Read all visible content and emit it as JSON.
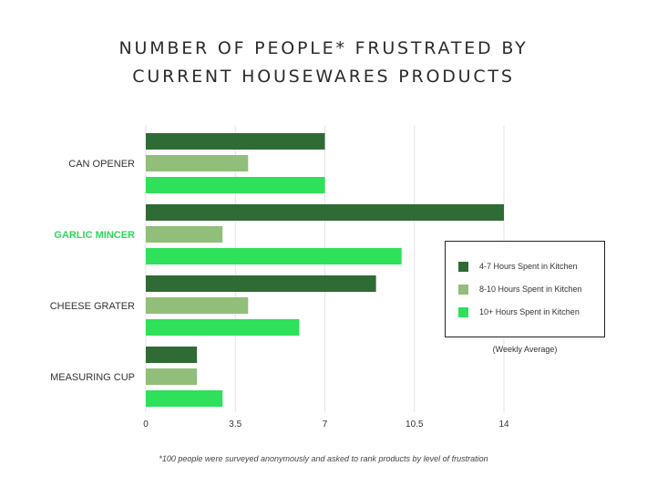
{
  "title_lines": [
    "NUMBER OF PEOPLE* FRUSTRATED BY",
    "CURRENT HOUSEWARES PRODUCTS"
  ],
  "footnote": "*100 people were surveyed anonymously and asked to rank products by level of frustration",
  "legend_note": "(Weekly Average)",
  "colors": {
    "dark": "#2f6b34",
    "light": "#91be78",
    "bright": "#2ee05a",
    "highlight_label": "#2fd65a",
    "grid": "#e3e3e3",
    "axis_text": "#333333"
  },
  "chart_data": {
    "type": "bar",
    "orientation": "horizontal",
    "title": "NUMBER OF PEOPLE* FRUSTRATED BY CURRENT HOUSEWARES PRODUCTS",
    "categories": [
      "CAN OPENER",
      "GARLIC MINCER",
      "CHEESE GRATER",
      "MEASURING CUP"
    ],
    "highlighted_category": "GARLIC MINCER",
    "series": [
      {
        "name": "4-7 Hours Spent in Kitchen",
        "values": [
          7,
          14,
          9,
          2
        ],
        "color": "#2f6b34"
      },
      {
        "name": "8-10 Hours Spent in Kitchen",
        "values": [
          4,
          3,
          4,
          2
        ],
        "color": "#91be78"
      },
      {
        "name": "10+ Hours Spent in Kitchen",
        "values": [
          7,
          10,
          6,
          3
        ],
        "color": "#2ee05a"
      }
    ],
    "xticks": [
      0,
      3.5,
      7,
      10.5,
      14
    ],
    "xtick_labels": [
      "0",
      "3.5",
      "7",
      "10.5",
      "14"
    ],
    "xlim": [
      0,
      14
    ],
    "grid": true,
    "legend_position": "right",
    "legend_note": "(Weekly Average)"
  }
}
